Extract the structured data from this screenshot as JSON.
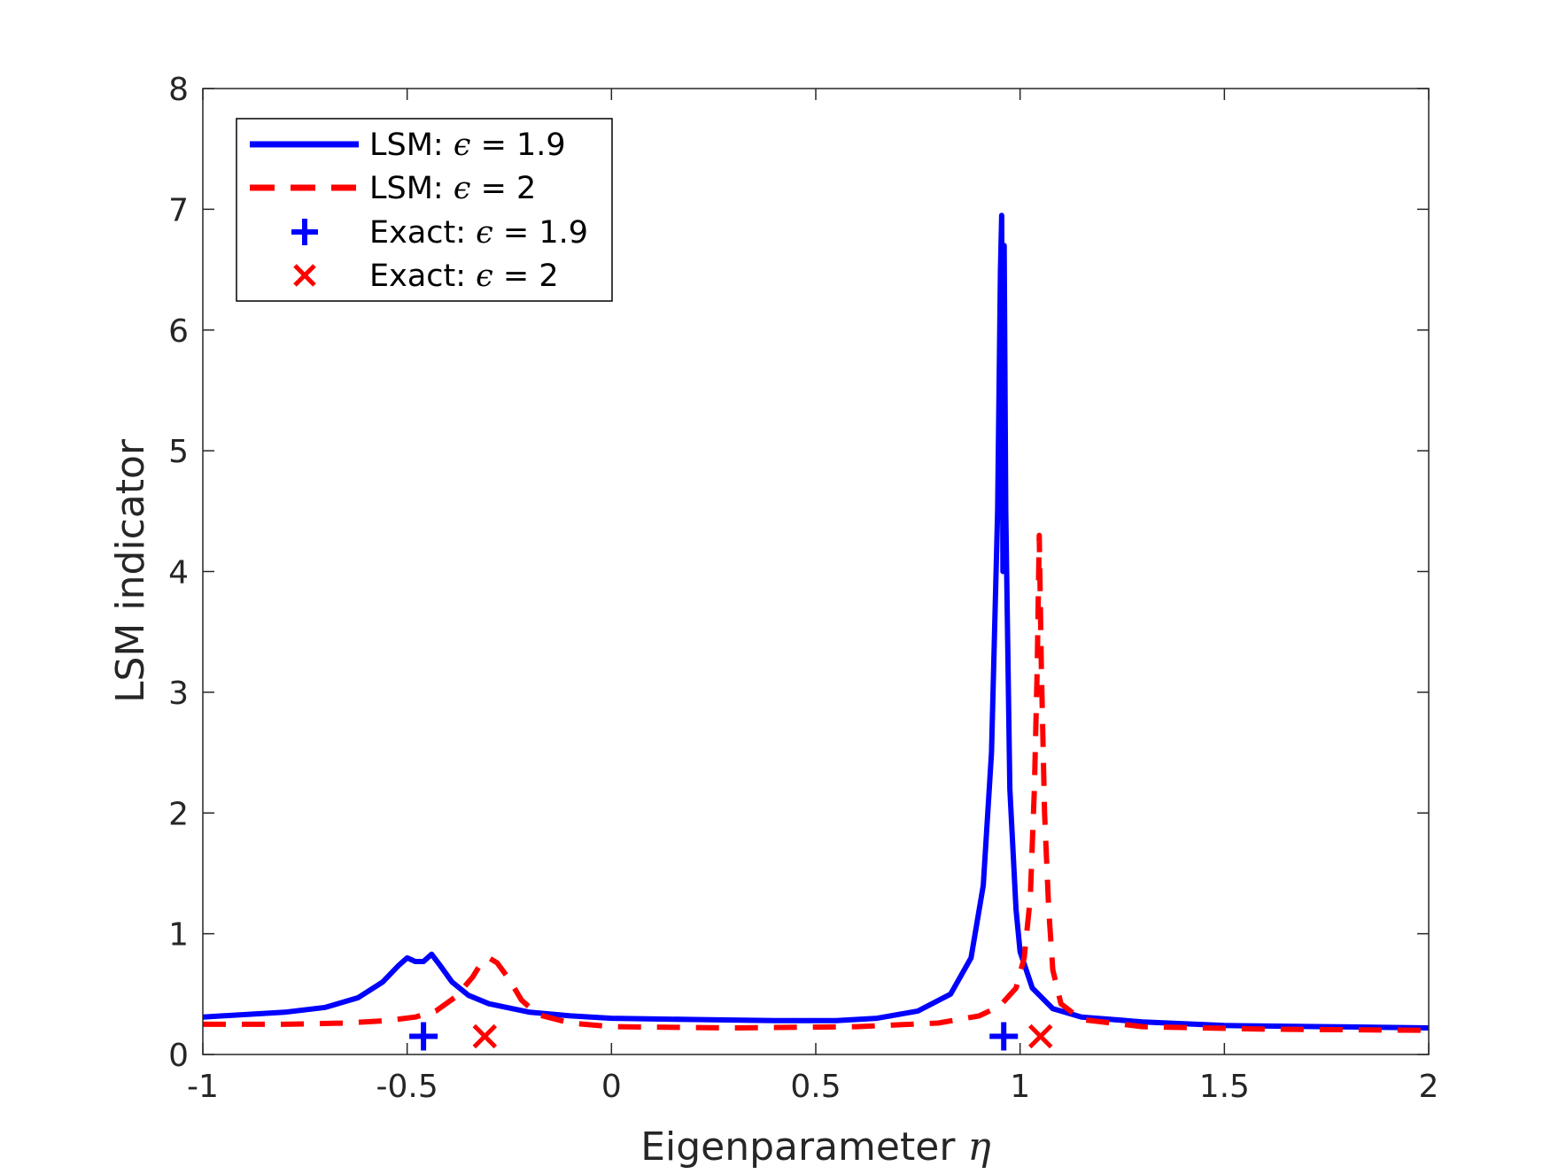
{
  "colors": {
    "series_blue": "#0000ff",
    "series_red": "#ff0000",
    "axis": "#262626",
    "background": "#ffffff"
  },
  "chart_data": {
    "type": "line",
    "title": "",
    "xlabel": "Eigenparameter",
    "xlabel_symbol": "η",
    "ylabel": "LSM indicator",
    "xlim": [
      -1,
      2
    ],
    "ylim": [
      0,
      8
    ],
    "xticks": [
      "-1",
      "-0.5",
      "0",
      "0.5",
      "1",
      "1.5",
      "2"
    ],
    "xtick_values": [
      -1,
      -0.5,
      0,
      0.5,
      1,
      1.5,
      2
    ],
    "yticks": [
      "0",
      "1",
      "2",
      "3",
      "4",
      "5",
      "6",
      "7",
      "8"
    ],
    "ytick_values": [
      0,
      1,
      2,
      3,
      4,
      5,
      6,
      7,
      8
    ],
    "grid": false,
    "legend_position": "top-left",
    "legend": [
      {
        "prefix": "LSM: ",
        "symbol": "ϵ",
        "suffix": " = 1.9",
        "style": "solid-line",
        "color": "#0000ff"
      },
      {
        "prefix": "LSM: ",
        "symbol": "ϵ",
        "suffix": " = 2",
        "style": "dashed-line",
        "color": "#ff0000"
      },
      {
        "prefix": "Exact: ",
        "symbol": "ϵ",
        "suffix": " = 1.9",
        "style": "plus-marker",
        "color": "#0000ff"
      },
      {
        "prefix": "Exact: ",
        "symbol": "ϵ",
        "suffix": " = 2",
        "style": "x-marker",
        "color": "#ff0000"
      }
    ],
    "series": [
      {
        "name": "LSM: ϵ = 1.9",
        "style": "solid",
        "color": "#0000ff",
        "points": [
          [
            -1.0,
            0.31
          ],
          [
            -0.9,
            0.33
          ],
          [
            -0.8,
            0.35
          ],
          [
            -0.7,
            0.39
          ],
          [
            -0.62,
            0.47
          ],
          [
            -0.56,
            0.6
          ],
          [
            -0.52,
            0.74
          ],
          [
            -0.5,
            0.8
          ],
          [
            -0.48,
            0.77
          ],
          [
            -0.46,
            0.77
          ],
          [
            -0.44,
            0.83
          ],
          [
            -0.42,
            0.74
          ],
          [
            -0.39,
            0.6
          ],
          [
            -0.35,
            0.49
          ],
          [
            -0.3,
            0.42
          ],
          [
            -0.2,
            0.35
          ],
          [
            -0.1,
            0.32
          ],
          [
            0.0,
            0.3
          ],
          [
            0.2,
            0.29
          ],
          [
            0.4,
            0.28
          ],
          [
            0.55,
            0.28
          ],
          [
            0.65,
            0.3
          ],
          [
            0.75,
            0.36
          ],
          [
            0.83,
            0.5
          ],
          [
            0.88,
            0.8
          ],
          [
            0.91,
            1.4
          ],
          [
            0.93,
            2.5
          ],
          [
            0.945,
            4.5
          ],
          [
            0.952,
            6.5
          ],
          [
            0.955,
            6.95
          ],
          [
            0.958,
            4.0
          ],
          [
            0.961,
            6.7
          ],
          [
            0.965,
            4.5
          ],
          [
            0.975,
            2.2
          ],
          [
            0.99,
            1.2
          ],
          [
            1.0,
            0.85
          ],
          [
            1.03,
            0.55
          ],
          [
            1.08,
            0.38
          ],
          [
            1.15,
            0.31
          ],
          [
            1.3,
            0.27
          ],
          [
            1.5,
            0.24
          ],
          [
            1.75,
            0.23
          ],
          [
            2.0,
            0.22
          ]
        ]
      },
      {
        "name": "LSM: ϵ = 2",
        "style": "dashed",
        "color": "#ff0000",
        "points": [
          [
            -1.0,
            0.25
          ],
          [
            -0.8,
            0.25
          ],
          [
            -0.65,
            0.26
          ],
          [
            -0.55,
            0.28
          ],
          [
            -0.48,
            0.31
          ],
          [
            -0.43,
            0.36
          ],
          [
            -0.38,
            0.48
          ],
          [
            -0.34,
            0.64
          ],
          [
            -0.32,
            0.75
          ],
          [
            -0.3,
            0.8
          ],
          [
            -0.28,
            0.76
          ],
          [
            -0.25,
            0.62
          ],
          [
            -0.22,
            0.45
          ],
          [
            -0.18,
            0.33
          ],
          [
            -0.1,
            0.26
          ],
          [
            0.0,
            0.23
          ],
          [
            0.3,
            0.22
          ],
          [
            0.6,
            0.23
          ],
          [
            0.8,
            0.26
          ],
          [
            0.9,
            0.32
          ],
          [
            0.95,
            0.4
          ],
          [
            0.99,
            0.55
          ],
          [
            1.01,
            0.8
          ],
          [
            1.025,
            1.3
          ],
          [
            1.035,
            2.2
          ],
          [
            1.042,
            3.2
          ],
          [
            1.047,
            4.3
          ],
          [
            1.052,
            3.2
          ],
          [
            1.06,
            2.0
          ],
          [
            1.07,
            1.2
          ],
          [
            1.08,
            0.7
          ],
          [
            1.1,
            0.42
          ],
          [
            1.15,
            0.29
          ],
          [
            1.3,
            0.23
          ],
          [
            1.6,
            0.21
          ],
          [
            2.0,
            0.2
          ]
        ]
      },
      {
        "name": "Exact: ϵ = 1.9",
        "style": "plus-marker",
        "color": "#0000ff",
        "points": [
          [
            -0.46,
            0.15
          ],
          [
            0.96,
            0.15
          ]
        ]
      },
      {
        "name": "Exact: ϵ = 2",
        "style": "x-marker",
        "color": "#ff0000",
        "points": [
          [
            -0.31,
            0.15
          ],
          [
            1.05,
            0.15
          ]
        ]
      }
    ]
  }
}
